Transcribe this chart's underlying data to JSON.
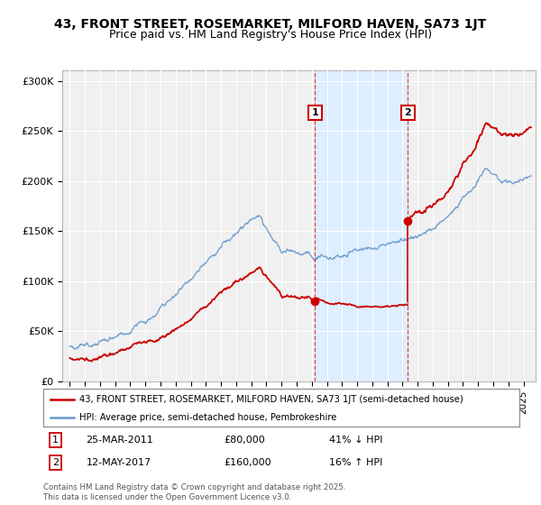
{
  "title": "43, FRONT STREET, ROSEMARKET, MILFORD HAVEN, SA73 1JT",
  "subtitle": "Price paid vs. HM Land Registry's House Price Index (HPI)",
  "ylabel_ticks": [
    "£0",
    "£50K",
    "£100K",
    "£150K",
    "£200K",
    "£250K",
    "£300K"
  ],
  "ytick_values": [
    0,
    50000,
    100000,
    150000,
    200000,
    250000,
    300000
  ],
  "ylim": [
    0,
    310000
  ],
  "xlim_start": 1994.5,
  "xlim_end": 2025.8,
  "transaction1": {
    "date_str": "25-MAR-2011",
    "year": 2011.22,
    "price": 80000,
    "label": "1",
    "pct": "41% ↓ HPI"
  },
  "transaction2": {
    "date_str": "12-MAY-2017",
    "year": 2017.36,
    "price": 160000,
    "label": "2",
    "pct": "16% ↑ HPI"
  },
  "legend_line1": "43, FRONT STREET, ROSEMARKET, MILFORD HAVEN, SA73 1JT (semi-detached house)",
  "legend_line2": "HPI: Average price, semi-detached house, Pembrokeshire",
  "footer": "Contains HM Land Registry data © Crown copyright and database right 2025.\nThis data is licensed under the Open Government Licence v3.0.",
  "color_red": "#cc0000",
  "color_blue": "#6699cc",
  "color_shade": "#ddeeff",
  "color_vline": "#dd4444",
  "background_color": "#f0f0f0",
  "title_fontsize": 10,
  "subtitle_fontsize": 9,
  "tick_fontsize": 8
}
